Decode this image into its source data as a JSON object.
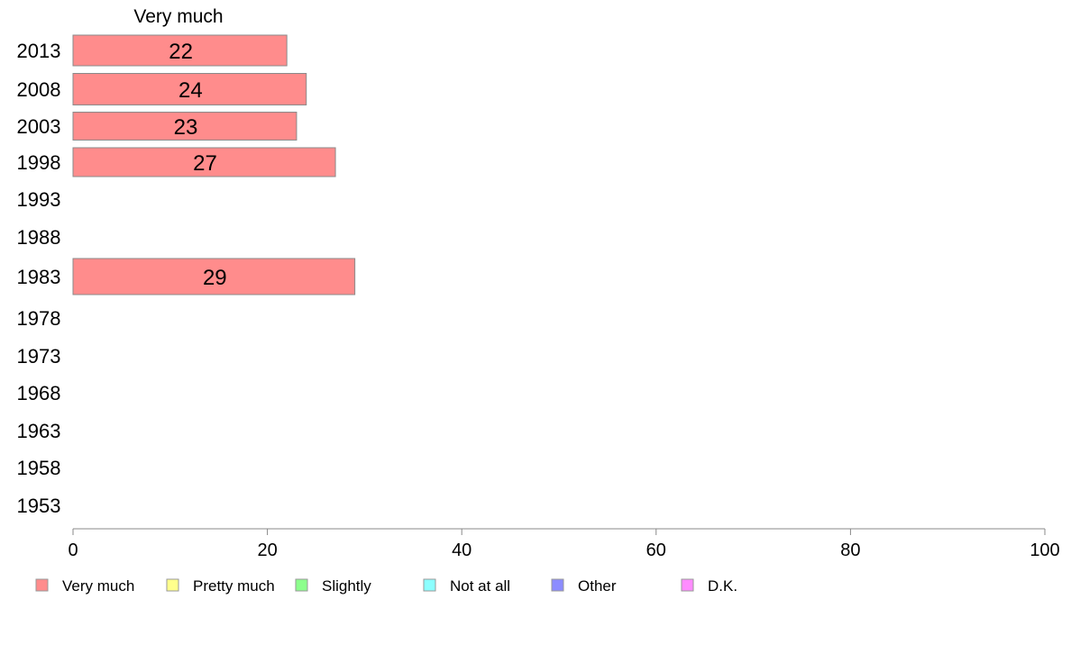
{
  "chart_data": {
    "type": "bar",
    "orientation": "horizontal",
    "column_title": "Very much",
    "categories": [
      "2013",
      "2008",
      "2003",
      "1998",
      "1993",
      "1988",
      "1983",
      "1978",
      "1973",
      "1968",
      "1963",
      "1958",
      "1953"
    ],
    "series": [
      {
        "name": "Very much",
        "color": "#ff8c8c",
        "values": [
          22,
          24,
          23,
          27,
          null,
          null,
          29,
          null,
          null,
          null,
          null,
          null,
          null
        ]
      }
    ],
    "xlim": [
      0,
      100
    ],
    "xticks": [
      0,
      20,
      40,
      60,
      80,
      100
    ],
    "grid": false,
    "legend": {
      "position": "bottom",
      "entries": [
        {
          "label": "Very much",
          "color": "#ff8c8c"
        },
        {
          "label": "Pretty much",
          "color": "#ffff8c"
        },
        {
          "label": "Slightly",
          "color": "#8cff8c"
        },
        {
          "label": "Not at all",
          "color": "#8cffff"
        },
        {
          "label": "Other",
          "color": "#8c8cff"
        },
        {
          "label": "D.K.",
          "color": "#ff8cff"
        }
      ]
    }
  }
}
